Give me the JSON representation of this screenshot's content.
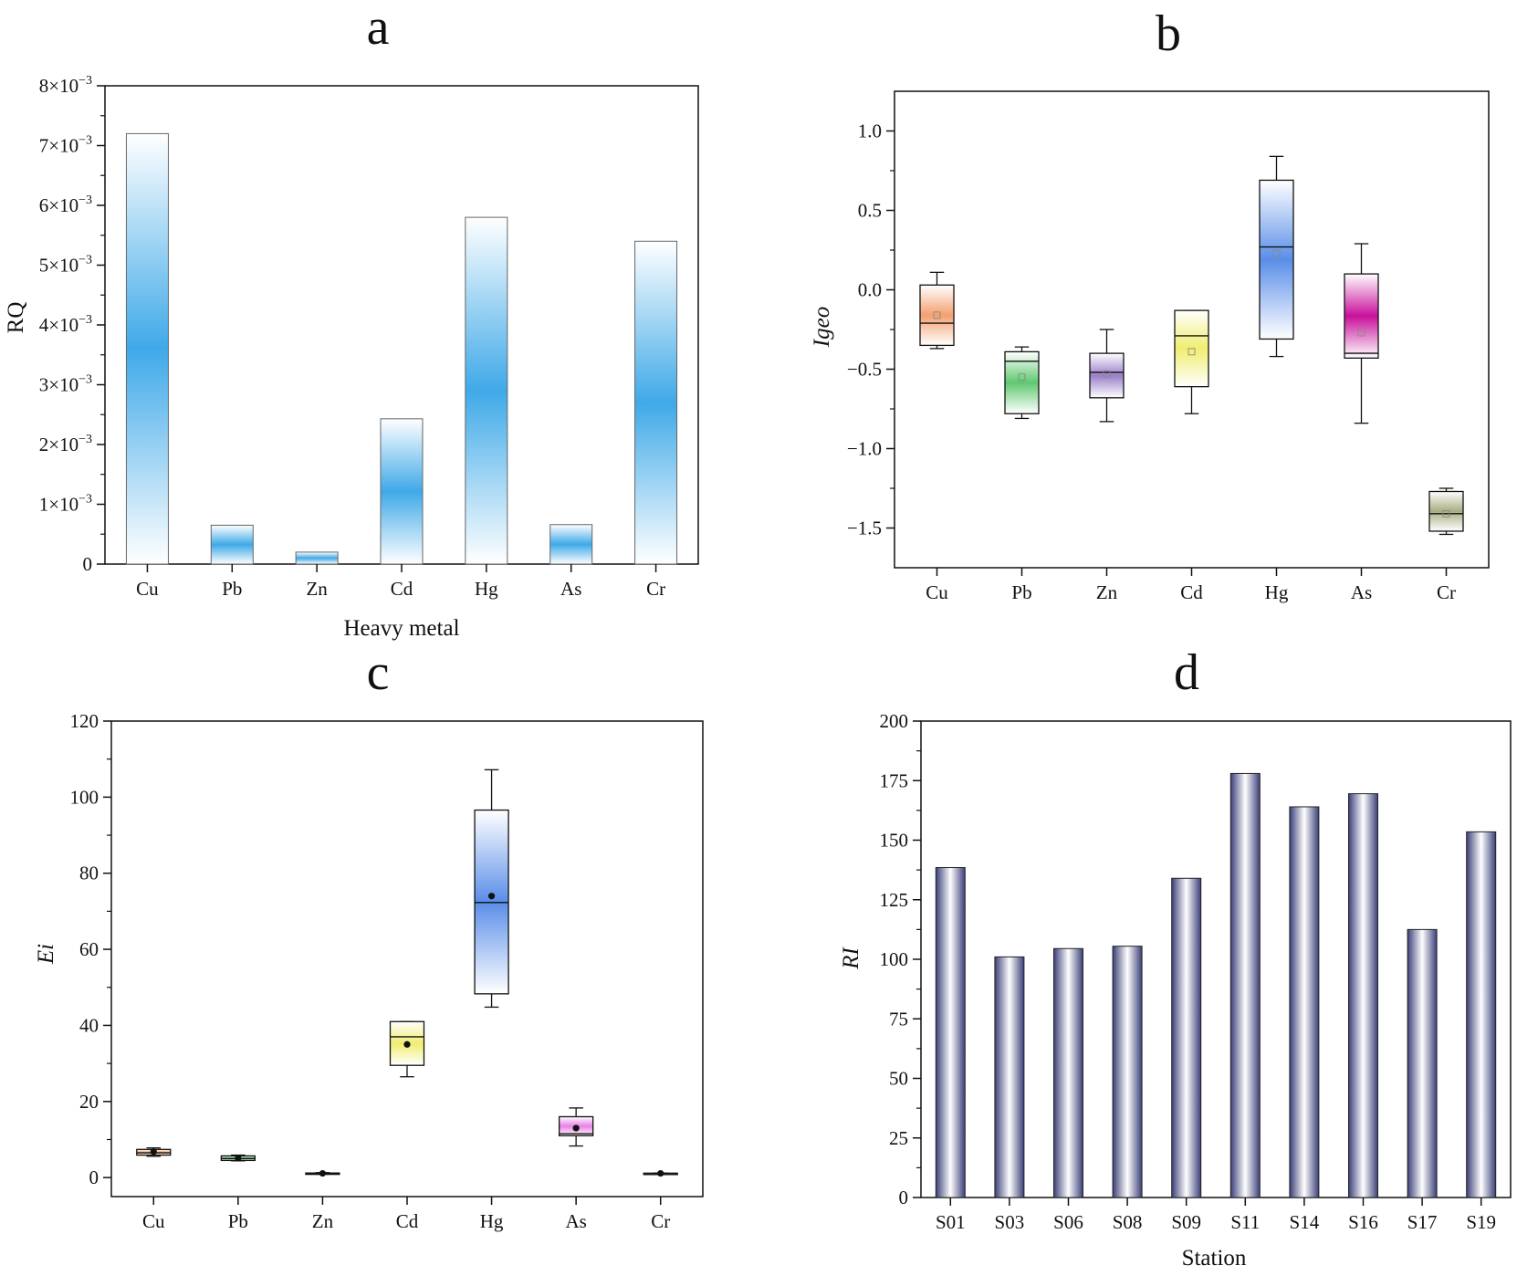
{
  "chart_data": [
    {
      "id": "a",
      "panel_label": "a",
      "type": "bar",
      "categories": [
        "Cu",
        "Pb",
        "Zn",
        "Cd",
        "Hg",
        "As",
        "Cr"
      ],
      "values": [
        0.0072,
        0.00065,
        0.0002,
        0.00243,
        0.0058,
        0.00066,
        0.0054
      ],
      "xlabel": "Heavy metal",
      "ylabel": "RQ",
      "ylim": [
        0,
        0.008
      ],
      "yticks": [
        {
          "value": 0,
          "mant": "0",
          "exp": ""
        },
        {
          "value": 0.001,
          "mant": "1×10",
          "exp": "−3"
        },
        {
          "value": 0.002,
          "mant": "2×10",
          "exp": "−3"
        },
        {
          "value": 0.003,
          "mant": "3×10",
          "exp": "−3"
        },
        {
          "value": 0.004,
          "mant": "4×10",
          "exp": "−3"
        },
        {
          "value": 0.005,
          "mant": "5×10",
          "exp": "−3"
        },
        {
          "value": 0.006,
          "mant": "6×10",
          "exp": "−3"
        },
        {
          "value": 0.007,
          "mant": "7×10",
          "exp": "−3"
        },
        {
          "value": 0.008,
          "mant": "8×10",
          "exp": "−3"
        }
      ],
      "bar_color": "#3fa9e8"
    },
    {
      "id": "b",
      "panel_label": "b",
      "type": "box",
      "categories": [
        "Cu",
        "Pb",
        "Zn",
        "Cd",
        "Hg",
        "As",
        "Cr"
      ],
      "boxes": [
        {
          "cat": "Cu",
          "min": -0.37,
          "q1": -0.35,
          "median": -0.21,
          "q3": 0.03,
          "max": 0.11,
          "mean": -0.16,
          "color": "#f4a070"
        },
        {
          "cat": "Pb",
          "min": -0.81,
          "q1": -0.78,
          "median": -0.45,
          "q3": -0.39,
          "max": -0.36,
          "mean": -0.55,
          "color": "#5fc870"
        },
        {
          "cat": "Zn",
          "min": -0.83,
          "q1": -0.68,
          "median": -0.52,
          "q3": -0.4,
          "max": -0.25,
          "mean": -0.53,
          "color": "#9a7fc8"
        },
        {
          "cat": "Cd",
          "min": -0.78,
          "q1": -0.61,
          "median": -0.29,
          "q3": -0.13,
          "max": -0.13,
          "mean": -0.39,
          "color": "#f0ee70"
        },
        {
          "cat": "Hg",
          "min": -0.42,
          "q1": -0.31,
          "median": 0.27,
          "q3": 0.69,
          "max": 0.84,
          "mean": 0.23,
          "color": "#5a8ee8"
        },
        {
          "cat": "As",
          "min": -0.84,
          "q1": -0.43,
          "median": -0.4,
          "q3": 0.1,
          "max": 0.29,
          "mean": -0.27,
          "color": "#c8109a"
        },
        {
          "cat": "Cr",
          "min": -1.54,
          "q1": -1.52,
          "median": -1.41,
          "q3": -1.27,
          "max": -1.25,
          "mean": -1.41,
          "color": "#a9ad80"
        }
      ],
      "ylabel": "Igeo",
      "ylim": [
        -1.75,
        1.25
      ],
      "yticks": [
        {
          "value": 1.0,
          "label": "1.0"
        },
        {
          "value": 0.5,
          "label": "0.5"
        },
        {
          "value": 0.0,
          "label": "0.0"
        },
        {
          "value": -0.5,
          "label": "−0.5"
        },
        {
          "value": -1.0,
          "label": "−1.0"
        },
        {
          "value": -1.5,
          "label": "−1.5"
        }
      ]
    },
    {
      "id": "c",
      "panel_label": "c",
      "type": "box",
      "categories": [
        "Cu",
        "Pb",
        "Zn",
        "Cd",
        "Hg",
        "As",
        "Cr"
      ],
      "boxes": [
        {
          "cat": "Cu",
          "min": 5.6,
          "q1": 5.9,
          "median": 6.5,
          "q3": 7.4,
          "max": 7.8,
          "mean": 6.8,
          "color": "#f4a070"
        },
        {
          "cat": "Pb",
          "min": 4.4,
          "q1": 4.5,
          "median": 5.0,
          "q3": 5.7,
          "max": 5.9,
          "mean": 5.1,
          "color": "#5fc870"
        },
        {
          "cat": "Zn",
          "min": 0.9,
          "q1": 1.0,
          "median": 1.1,
          "q3": 1.2,
          "max": 1.3,
          "mean": 1.1,
          "color": "#9a7fc8"
        },
        {
          "cat": "Cd",
          "min": 26.5,
          "q1": 29.5,
          "median": 37.0,
          "q3": 41.0,
          "max": 41.0,
          "mean": 35.0,
          "color": "#f0ee70"
        },
        {
          "cat": "Hg",
          "min": 44.8,
          "q1": 48.3,
          "median": 72.3,
          "q3": 96.6,
          "max": 107.2,
          "mean": 74.0,
          "color": "#5a8ee8"
        },
        {
          "cat": "As",
          "min": 8.3,
          "q1": 11.0,
          "median": 11.5,
          "q3": 16.0,
          "max": 18.3,
          "mean": 13.0,
          "color": "#e880e8"
        },
        {
          "cat": "Cr",
          "min": 1.0,
          "q1": 1.05,
          "median": 1.1,
          "q3": 1.15,
          "max": 1.2,
          "mean": 1.1,
          "color": "#a9ad80"
        }
      ],
      "ylabel": "Ei",
      "ylim": [
        -5,
        120
      ],
      "yticks": [
        {
          "value": 0,
          "label": "0"
        },
        {
          "value": 20,
          "label": "20"
        },
        {
          "value": 40,
          "label": "40"
        },
        {
          "value": 60,
          "label": "60"
        },
        {
          "value": 80,
          "label": "80"
        },
        {
          "value": 100,
          "label": "100"
        },
        {
          "value": 120,
          "label": "120"
        }
      ]
    },
    {
      "id": "d",
      "panel_label": "d",
      "type": "bar",
      "categories": [
        "S01",
        "S03",
        "S06",
        "S08",
        "S09",
        "S11",
        "S14",
        "S16",
        "S17",
        "S19"
      ],
      "values": [
        138.5,
        101,
        104.5,
        105.5,
        134,
        178,
        164,
        169.5,
        112.5,
        153.5
      ],
      "xlabel": "Station",
      "ylabel": "RI",
      "ylim": [
        0,
        200
      ],
      "yticks": [
        {
          "value": 0,
          "label": "0"
        },
        {
          "value": 25,
          "label": "25"
        },
        {
          "value": 50,
          "label": "50"
        },
        {
          "value": 75,
          "label": "75"
        },
        {
          "value": 100,
          "label": "100"
        },
        {
          "value": 125,
          "label": "125"
        },
        {
          "value": 150,
          "label": "150"
        },
        {
          "value": 175,
          "label": "175"
        },
        {
          "value": 200,
          "label": "200"
        }
      ],
      "bar_color": "#3a3f78"
    }
  ]
}
